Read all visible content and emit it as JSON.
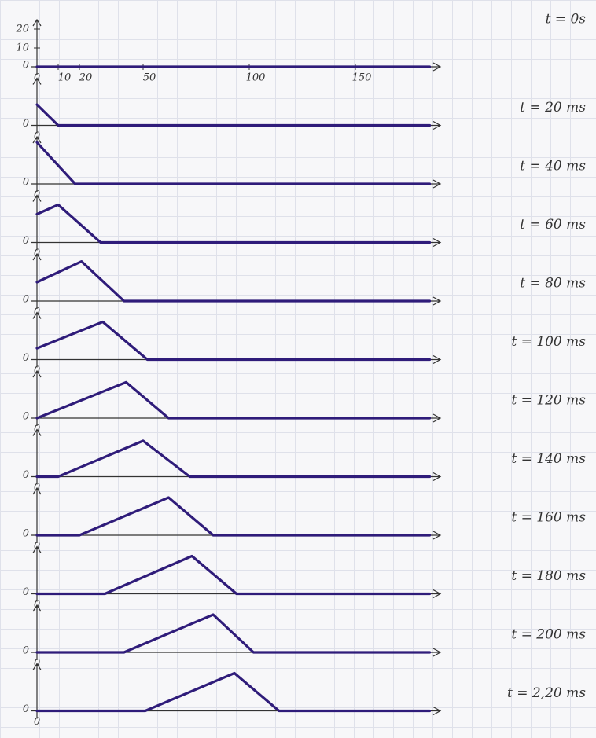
{
  "chart_data": [
    {
      "type": "line",
      "title": "t = 0s",
      "x": [
        0,
        185
      ],
      "values": [
        0,
        0
      ],
      "xlim": [
        0,
        190
      ],
      "ylim": [
        0,
        25
      ],
      "xticks": [
        0,
        10,
        20,
        50,
        100,
        150
      ],
      "yticks": [
        0,
        10,
        20
      ],
      "color": "#2f1c7a"
    },
    {
      "type": "line",
      "title": "t = 20 ms",
      "x": [
        0,
        10,
        185
      ],
      "values": [
        11,
        0,
        0
      ],
      "xlim": [
        0,
        190
      ],
      "ylim": [
        0,
        25
      ],
      "xticks": [
        0
      ],
      "yticks": [
        0
      ],
      "color": "#2f1c7a"
    },
    {
      "type": "line",
      "title": "t = 40 ms",
      "x": [
        0,
        18,
        185
      ],
      "values": [
        22,
        0,
        0
      ],
      "xlim": [
        0,
        190
      ],
      "ylim": [
        0,
        25
      ],
      "xticks": [
        0
      ],
      "yticks": [
        0
      ],
      "color": "#2f1c7a"
    },
    {
      "type": "line",
      "title": "t = 60 ms",
      "x": [
        0,
        10,
        30,
        185
      ],
      "values": [
        15,
        20,
        0,
        0
      ],
      "xlim": [
        0,
        190
      ],
      "ylim": [
        0,
        25
      ],
      "xticks": [
        0
      ],
      "yticks": [
        0
      ],
      "color": "#2f1c7a"
    },
    {
      "type": "line",
      "title": "t = 80 ms",
      "x": [
        0,
        21,
        41,
        185
      ],
      "values": [
        10,
        21,
        0,
        0
      ],
      "xlim": [
        0,
        190
      ],
      "ylim": [
        0,
        25
      ],
      "xticks": [
        0
      ],
      "yticks": [
        0
      ],
      "color": "#2f1c7a"
    },
    {
      "type": "line",
      "title": "t = 100 ms",
      "x": [
        0,
        31,
        52,
        185
      ],
      "values": [
        6,
        20,
        0,
        0
      ],
      "xlim": [
        0,
        190
      ],
      "ylim": [
        0,
        25
      ],
      "xticks": [
        0
      ],
      "yticks": [
        0
      ],
      "color": "#2f1c7a"
    },
    {
      "type": "line",
      "title": "t = 120 ms",
      "x": [
        0,
        42,
        62,
        185
      ],
      "values": [
        0,
        19,
        0,
        0
      ],
      "xlim": [
        0,
        190
      ],
      "ylim": [
        0,
        25
      ],
      "xticks": [
        0
      ],
      "yticks": [
        0
      ],
      "color": "#2f1c7a"
    },
    {
      "type": "line",
      "title": "t = 140 ms",
      "x": [
        0,
        10,
        50,
        72,
        185
      ],
      "values": [
        0,
        0,
        19,
        0,
        0
      ],
      "xlim": [
        0,
        190
      ],
      "ylim": [
        0,
        25
      ],
      "xticks": [
        0
      ],
      "yticks": [
        0
      ],
      "color": "#2f1c7a"
    },
    {
      "type": "line",
      "title": "t = 160 ms",
      "x": [
        0,
        20,
        62,
        83,
        185
      ],
      "values": [
        0,
        0,
        20,
        0,
        0
      ],
      "xlim": [
        0,
        190
      ],
      "ylim": [
        0,
        25
      ],
      "xticks": [
        0
      ],
      "yticks": [
        0
      ],
      "color": "#2f1c7a"
    },
    {
      "type": "line",
      "title": "t = 180 ms",
      "x": [
        0,
        32,
        73,
        94,
        185
      ],
      "values": [
        0,
        0,
        20,
        0,
        0
      ],
      "xlim": [
        0,
        190
      ],
      "ylim": [
        0,
        25
      ],
      "xticks": [
        0
      ],
      "yticks": [
        0
      ],
      "color": "#2f1c7a"
    },
    {
      "type": "line",
      "title": "t = 200 ms",
      "x": [
        0,
        41,
        83,
        102,
        185
      ],
      "values": [
        0,
        0,
        20,
        0,
        0
      ],
      "xlim": [
        0,
        190
      ],
      "ylim": [
        0,
        25
      ],
      "xticks": [
        0
      ],
      "yticks": [
        0
      ],
      "color": "#2f1c7a"
    },
    {
      "type": "line",
      "title": "t = 2,20 ms",
      "x": [
        0,
        51,
        93,
        114,
        185
      ],
      "values": [
        0,
        0,
        20,
        0,
        0
      ],
      "xlim": [
        0,
        190
      ],
      "ylim": [
        0,
        25
      ],
      "xticks": [
        0
      ],
      "yticks": [
        0
      ],
      "color": "#2f1c7a"
    }
  ]
}
